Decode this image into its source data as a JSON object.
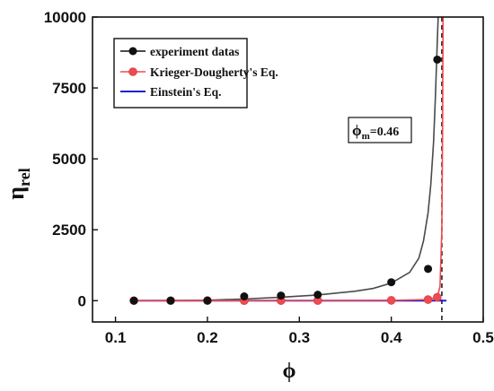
{
  "chart_data": {
    "type": "line",
    "xlabel": "ϕ",
    "ylabel": {
      "main": "η",
      "sub": "rel"
    },
    "xlim": [
      0.075,
      0.5
    ],
    "ylim": [
      -750,
      10000
    ],
    "xticks": [
      0.1,
      0.2,
      0.3,
      0.4,
      0.5
    ],
    "yticks": [
      0,
      2500,
      5000,
      7500,
      10000
    ],
    "xtick_labels": [
      "0.1",
      "0.2",
      "0.3",
      "0.4",
      "0.5"
    ],
    "ytick_labels": [
      "0",
      "2500",
      "5000",
      "7500",
      "10000"
    ],
    "legend_position": "top-left",
    "series": [
      {
        "name": "experiment datas",
        "style": "points+curve",
        "color": "#111111",
        "curve_color": "#4a4a4a",
        "points": [
          [
            0.12,
            1
          ],
          [
            0.16,
            2
          ],
          [
            0.2,
            5
          ],
          [
            0.24,
            150
          ],
          [
            0.28,
            180
          ],
          [
            0.32,
            210
          ],
          [
            0.4,
            650
          ],
          [
            0.44,
            1120
          ],
          [
            0.45,
            8500
          ]
        ],
        "curve": [
          [
            0.12,
            1
          ],
          [
            0.16,
            3
          ],
          [
            0.2,
            15
          ],
          [
            0.24,
            60
          ],
          [
            0.28,
            120
          ],
          [
            0.32,
            200
          ],
          [
            0.36,
            330
          ],
          [
            0.38,
            430
          ],
          [
            0.4,
            620
          ],
          [
            0.42,
            1000
          ],
          [
            0.43,
            1500
          ],
          [
            0.435,
            2100
          ],
          [
            0.44,
            3100
          ],
          [
            0.443,
            4100
          ],
          [
            0.446,
            5600
          ],
          [
            0.448,
            7200
          ],
          [
            0.45,
            9100
          ],
          [
            0.451,
            10000
          ]
        ]
      },
      {
        "name": "Krieger-Dougherty's Eq.",
        "style": "points+curve",
        "color": "#f0494f",
        "curve_color": "#f0494f",
        "points": [
          [
            0.12,
            0
          ],
          [
            0.16,
            1
          ],
          [
            0.2,
            2
          ],
          [
            0.24,
            3
          ],
          [
            0.28,
            4
          ],
          [
            0.32,
            6
          ],
          [
            0.4,
            12
          ],
          [
            0.44,
            40
          ],
          [
            0.45,
            120
          ]
        ],
        "curve": [
          [
            0.12,
            0
          ],
          [
            0.2,
            2
          ],
          [
            0.3,
            5
          ],
          [
            0.4,
            12
          ],
          [
            0.44,
            40
          ],
          [
            0.45,
            120
          ],
          [
            0.453,
            500
          ],
          [
            0.455,
            2500
          ],
          [
            0.4558,
            6000
          ],
          [
            0.4563,
            10000
          ]
        ]
      },
      {
        "name": "Einstein's Eq.",
        "style": "line",
        "color": "#1f1fd6",
        "curve": [
          [
            0.12,
            1.3
          ],
          [
            0.46,
            2.15
          ]
        ]
      }
    ],
    "annotations": [
      {
        "type": "vline",
        "x": 0.455,
        "style": "dashed",
        "color": "#111111"
      },
      {
        "type": "label",
        "text_main": "ϕ",
        "text_sub": "m",
        "text_rest": "=0.46"
      }
    ]
  }
}
